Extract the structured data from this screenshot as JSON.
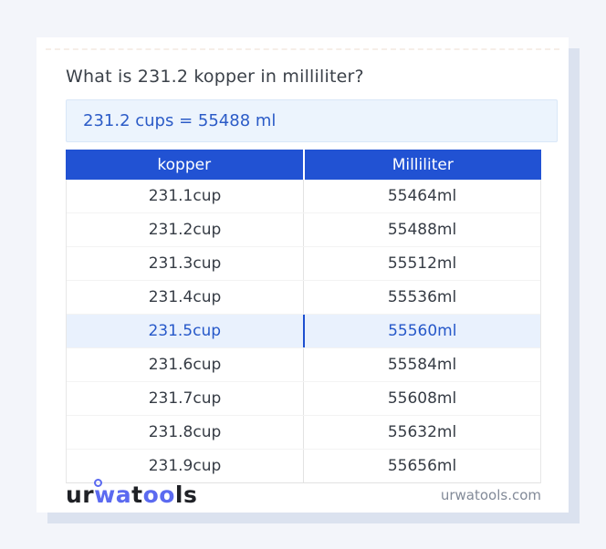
{
  "page": {
    "background_color": "#f3f5fa",
    "card_shadow_color": "#dbe2ef"
  },
  "title": "What is 231.2 kopper in milliliter?",
  "answer": {
    "text": "231.2 cups = 55488 ml",
    "background_color": "#ecf4fd",
    "text_color": "#2b5bc7"
  },
  "table": {
    "header_background": "#2152d3",
    "highlight_background": "#e9f1fd",
    "highlight_text_color": "#2658c9",
    "headers": [
      "kopper",
      "Milliliter"
    ],
    "rows": [
      {
        "kopper": "231.1cup",
        "ml": "55464ml",
        "highlighted": false
      },
      {
        "kopper": "231.2cup",
        "ml": "55488ml",
        "highlighted": false
      },
      {
        "kopper": "231.3cup",
        "ml": "55512ml",
        "highlighted": false
      },
      {
        "kopper": "231.4cup",
        "ml": "55536ml",
        "highlighted": false
      },
      {
        "kopper": "231.5cup",
        "ml": "55560ml",
        "highlighted": true
      },
      {
        "kopper": "231.6cup",
        "ml": "55584ml",
        "highlighted": false
      },
      {
        "kopper": "231.7cup",
        "ml": "55608ml",
        "highlighted": false
      },
      {
        "kopper": "231.8cup",
        "ml": "55632ml",
        "highlighted": false
      },
      {
        "kopper": "231.9cup",
        "ml": "55656ml",
        "highlighted": false
      }
    ]
  },
  "footer": {
    "logo": {
      "segments": [
        {
          "text": "ur",
          "color": "#1f2126"
        },
        {
          "text": "wa",
          "color": "#5b6af0"
        },
        {
          "text": "t",
          "color": "#1f2126"
        },
        {
          "text": "oo",
          "color": "#5b6af0"
        },
        {
          "text": "ls",
          "color": "#1f2126"
        }
      ]
    },
    "site": "urwatools.com"
  }
}
